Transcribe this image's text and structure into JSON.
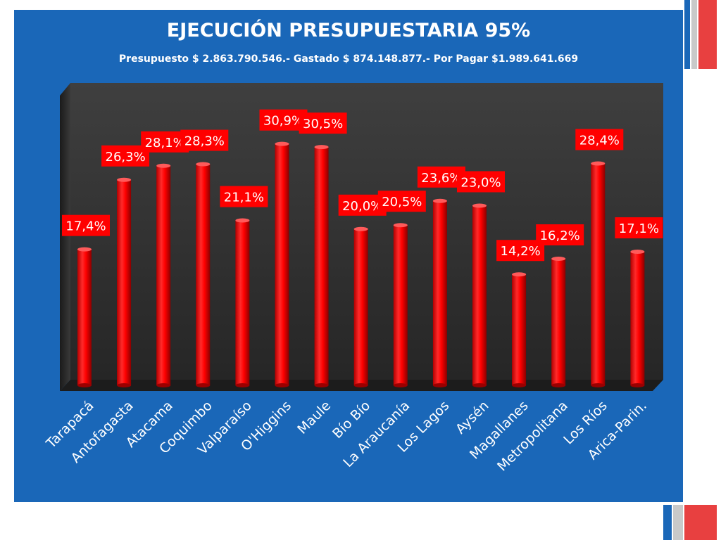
{
  "slide": {
    "title": "EJECUCIÓN PRESUPUESTARIA 95%",
    "subtitle": "Presupuesto $ 2.863.790.546.-  Gastado $ 874.148.877.-  Por Pagar  $1.989.641.669"
  },
  "colors": {
    "panel": "#1a67b8",
    "bar": "#ff0000",
    "label_box": "#ff0000",
    "plot_back": "#3a3a3a",
    "accent": "#e84040"
  },
  "chart_data": {
    "type": "bar",
    "categories": [
      "Tarapacá",
      "Antofagasta",
      "Atacama",
      "Coquimbo",
      "Valparaíso",
      "O'Higgins",
      "Maule",
      "Bío Bío",
      "La Araucanía",
      "Los Lagos",
      "Aysén",
      "Magallanes",
      "Metropolitana",
      "Los Ríos",
      "Arica-Parin."
    ],
    "values": [
      17.4,
      26.3,
      28.1,
      28.3,
      21.1,
      30.9,
      30.5,
      20.0,
      20.5,
      23.6,
      23.0,
      14.2,
      16.2,
      28.4,
      17.1
    ],
    "data_labels": [
      "17,4%",
      "26,3%",
      "28,1%",
      "28,3%",
      "21,1%",
      "30,9%",
      "30,5%",
      "20,0%",
      "20,5%",
      "23,6%",
      "23,0%",
      "14,2%",
      "16,2%",
      "28,4%",
      "17,1%"
    ],
    "ylim": [
      0,
      36
    ],
    "grid": false,
    "legend": "none",
    "style": "3d-cylinder"
  }
}
